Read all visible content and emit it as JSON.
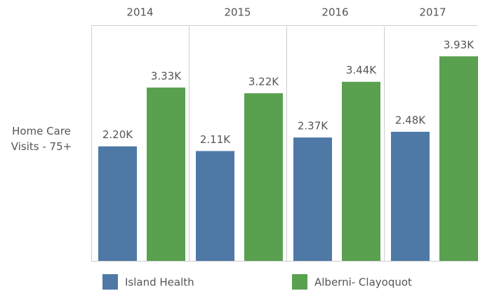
{
  "chart_data": {
    "type": "bar",
    "row_label": "Home Care Visits - 75+",
    "categories": [
      "2014",
      "2015",
      "2016",
      "2017"
    ],
    "series": [
      {
        "name": "Island Health",
        "color": "#4e79a7",
        "values": [
          2200,
          2110,
          2370,
          2480
        ],
        "value_labels": [
          "2.20K",
          "2.11K",
          "2.37K",
          "2.48K"
        ]
      },
      {
        "name": "Alberni- Clayoquot",
        "color": "#59a14f",
        "values": [
          3330,
          3220,
          3440,
          3930
        ],
        "value_labels": [
          "3.33K",
          "3.22K",
          "3.44K",
          "3.93K"
        ]
      }
    ],
    "ylim": [
      0,
      4500
    ]
  }
}
